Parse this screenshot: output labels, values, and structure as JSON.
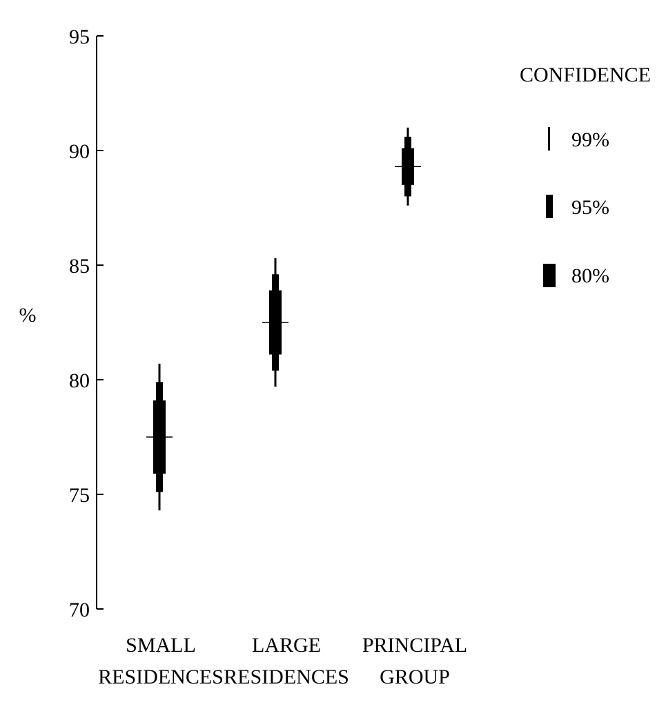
{
  "chart_data": {
    "type": "interval",
    "title": "",
    "xlabel": "",
    "ylabel": "%",
    "ylim": [
      70,
      95
    ],
    "yticks": [
      95,
      90,
      85,
      80,
      75,
      70
    ],
    "categories": [
      {
        "line1": "SMALL",
        "line2": "RESIDENCES"
      },
      {
        "line1": "LARGE",
        "line2": "RESIDENCES"
      },
      {
        "line1": "PRINCIPAL",
        "line2": "GROUP"
      }
    ],
    "estimates": [
      77.5,
      82.5,
      89.3
    ],
    "intervals": [
      {
        "level": "99%",
        "lows": [
          74.3,
          79.7,
          87.6
        ],
        "highs": [
          80.7,
          85.3,
          91.0
        ]
      },
      {
        "level": "95%",
        "lows": [
          75.1,
          80.4,
          88.0
        ],
        "highs": [
          79.9,
          84.6,
          90.6
        ]
      },
      {
        "level": "80%",
        "lows": [
          75.9,
          81.1,
          88.5
        ],
        "highs": [
          79.1,
          83.9,
          90.1
        ]
      }
    ],
    "grid": false,
    "legend": {
      "title": "CONFIDENCE",
      "placement": "top-right",
      "entries": [
        "99%",
        "95%",
        "80%"
      ]
    }
  },
  "colors": {
    "ink": "#000000",
    "background": "#ffffff"
  }
}
